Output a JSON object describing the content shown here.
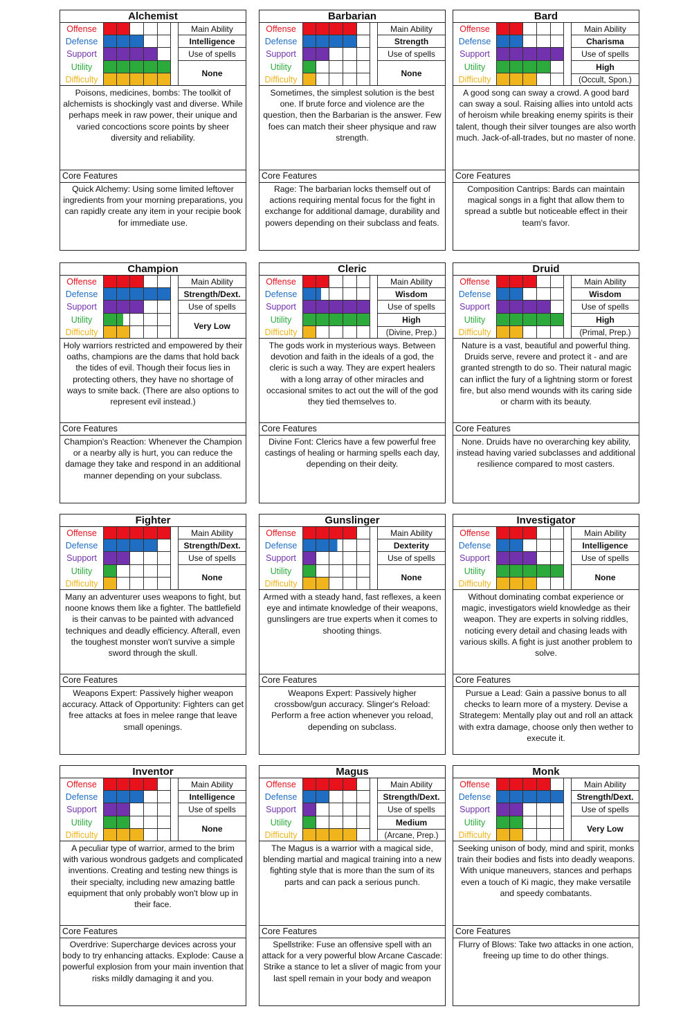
{
  "stat_labels": [
    "Offense",
    "Defense",
    "Support",
    "Utility",
    "Difficulty"
  ],
  "stat_colors": [
    "#e8121d",
    "#1f6ec4",
    "#7332ad",
    "#2caa3c",
    "#f0b41c"
  ],
  "stat_label_colors": [
    "#e8121d",
    "#1f6ec4",
    "#7332ad",
    "#2caa3c",
    "#f0b41c"
  ],
  "main_ability_label": "Main Ability",
  "spells_label": "Use of spells",
  "core_features_label": "Core Features",
  "cards": [
    {
      "name": "Alchemist",
      "stats": [
        2,
        3,
        4,
        5,
        5
      ],
      "main_ability": "Intelligence",
      "spells": "None",
      "spells_note": "",
      "description": "Poisons, medicines, bombs: The toolkit of alchemists is shockingly vast and diverse. While perhaps meek in raw power, their unique and varied concoctions score points by sheer diversity and reliability.",
      "core": "Quick Alchemy: Using some limited leftover ingredients from your morning preparations, you can rapidly create any item in your recipie book for immediate use."
    },
    {
      "name": "Barbarian",
      "stats": [
        4,
        4,
        2,
        1,
        1
      ],
      "main_ability": "Strength",
      "spells": "None",
      "spells_note": "",
      "description": "Sometimes, the simplest solution is the best one. If brute force and violence are the question, then the Barbarian is the answer. Few foes can match their sheer physique and raw strength.",
      "core": "Rage: The barbarian locks themself out of actions requiring mental focus for the fight in exchange for additional damage, durability and powers depending on their subclass and feats."
    },
    {
      "name": "Bard",
      "stats": [
        2,
        2,
        5,
        4,
        3
      ],
      "main_ability": "Charisma",
      "spells": "High",
      "spells_note": "(Occult, Spon.)",
      "description": "A good song can sway a crowd. A good bard can sway a soul. Raising allies into untold acts of heroism while breaking enemy spirits is their talent, though their silver tounges are also worth much. Jack-of-all-trades, but no master of none.",
      "core": "Composition Cantrips: Bards can maintain magical songs in a fight that allow them to spread a subtle but noticeable effect in their team's favor."
    },
    {
      "name": "Champion",
      "stats": [
        3,
        5,
        3,
        1.5,
        2
      ],
      "main_ability": "Strength/Dext.",
      "spells": "Very Low",
      "spells_note": "",
      "description": "Holy warriors restricted and empowered by their oaths, champions are the dams that hold back the tides of evil. Though their focus lies in protecting others, they have no shortage of ways to smite back. (There are also options to represent evil instead.)",
      "core": "Champion's Reaction: Whenever the Champion or a nearby ally is hurt, you can reduce the damage they take and respond in an additional manner depending on your subclass."
    },
    {
      "name": "Cleric",
      "stats": [
        2,
        1.4,
        5,
        5,
        1
      ],
      "main_ability": "Wisdom",
      "spells": "High",
      "spells_note": "(Divine, Prep.)",
      "description": "The gods work in mysterious ways. Between devotion and faith in the ideals of a god, the cleric is such a way. They are expert healers with a long array of other miracles and occasional smites to act out the will of the god they tied themselves to.",
      "core": "Divine Font: Clerics have a few powerful free castings of healing or harming spells each day, depending on their deity."
    },
    {
      "name": "Druid",
      "stats": [
        3,
        2,
        4,
        5,
        2
      ],
      "main_ability": "Wisdom",
      "spells": "High",
      "spells_note": "(Primal, Prep.)",
      "description": "Nature is a vast, beautiful and powerful thing. Druids serve, revere and protect it - and are granted strength to do so. Their natural magic can inflict the fury of a lightning storm or forest fire, but also mend wounds with its caring side or charm with its beauty.",
      "core": "None. Druids have no overarching key ability, instead having varied subclasses and additional resilience compared to most casters."
    },
    {
      "name": "Fighter",
      "stats": [
        5,
        4,
        2,
        1,
        1
      ],
      "main_ability": "Strength/Dext.",
      "spells": "None",
      "spells_note": "",
      "description": "Many an adventurer uses weapons to fight, but noone knows them like a fighter. The battlefield is their canvas to be painted with advanced techniques and deadly efficiency. Afterall, even the toughest monster won't survive a simple sword through the skull.",
      "core": "Weapons Expert: Passively higher weapon accuracy.                Attack of Opportunity: Fighters can get free attacks at foes in melee range that leave small openings."
    },
    {
      "name": "Gunslinger",
      "stats": [
        4,
        2.6,
        1,
        1,
        2
      ],
      "main_ability": "Dexterity",
      "spells": "None",
      "spells_note": "",
      "description": "Armed with a steady hand, fast reflexes, a keen eye and intimate knowledge of their weapons, gunslingers are true experts when it comes to shooting things.",
      "core": "Weapons Expert: Passively higher crossbow/gun accuracy.             Slinger's Reload: Perform a free action whenever you reload, depending on subclass."
    },
    {
      "name": "Investigator",
      "stats": [
        3,
        2,
        3,
        5,
        3
      ],
      "main_ability": "Intelligence",
      "spells": "None",
      "spells_note": "",
      "description": "Without dominating combat experience or magic, investigators wield knowledge as their weapon. They are experts in solving riddles, noticing every detail and chasing leads with various skills. A fight is just another problem to solve.",
      "core": "Pursue a Lead: Gain a passive bonus to all checks to learn more of a mystery. Devise a Strategem: Mentally play out and roll an attack with extra damage, choose only then wether to execute it."
    },
    {
      "name": "Inventor",
      "stats": [
        4,
        3,
        2,
        2,
        3
      ],
      "main_ability": "Intelligence",
      "spells": "None",
      "spells_note": "",
      "description": "A peculiar type of warrior, armed to the brim with various wondrous gadgets and complicated inventions. Creating and testing new things is their specialty, including new amazing battle equipment that only probably won't blow up in their face.",
      "core": "Overdrive: Supercharge devices across your body to try enhancing attacks. Explode: Cause a powerful explosion from your main invention that risks mildly damaging it and you."
    },
    {
      "name": "Magus",
      "stats": [
        4,
        2,
        1,
        1,
        4
      ],
      "main_ability": "Strength/Dext.",
      "spells": "Medium",
      "spells_note": "(Arcane, Prep.)",
      "description": "The Magus is a warrior with a magical side, blending martial and magical training into a new fighting style that is more than the sum of its parts and can pack a serious punch.",
      "core": "Spellstrike: Fuse an offensive spell with an attack for a very powerful blow Arcane Cascade: Strike a stance to let a sliver of magic from your last spell remain in your body and weapon"
    },
    {
      "name": "Monk",
      "stats": [
        4,
        5,
        2,
        2,
        2
      ],
      "main_ability": "Strength/Dext.",
      "spells": "Very Low",
      "spells_note": "",
      "description": "Seeking unison of body, mind and spirit, monks train their bodies and fists into deadly weapons. With unique maneuvers, stances and perhaps even a touch of Ki magic, they make versatile and speedy combatants.",
      "core": "Flurry of Blows: Take two attacks in one action, freeing up time to do other things."
    }
  ]
}
